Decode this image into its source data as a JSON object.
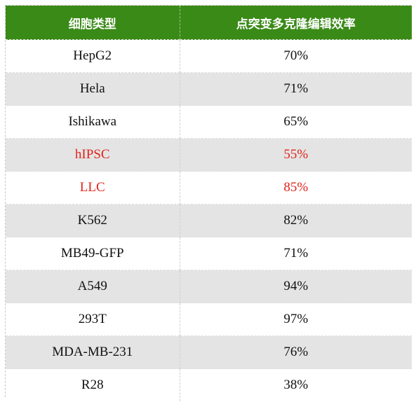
{
  "table": {
    "headers": [
      "细胞类型",
      "点突变多克隆编辑效率"
    ],
    "rows": [
      {
        "cell_type": "HepG2",
        "efficiency": "70%",
        "highlight": false
      },
      {
        "cell_type": "Hela",
        "efficiency": "71%",
        "highlight": false
      },
      {
        "cell_type": "Ishikawa",
        "efficiency": "65%",
        "highlight": false
      },
      {
        "cell_type": "hIPSC",
        "efficiency": "55%",
        "highlight": true
      },
      {
        "cell_type": "LLC",
        "efficiency": "85%",
        "highlight": true
      },
      {
        "cell_type": "K562",
        "efficiency": "82%",
        "highlight": false
      },
      {
        "cell_type": "MB49-GFP",
        "efficiency": "71%",
        "highlight": false
      },
      {
        "cell_type": "A549",
        "efficiency": "94%",
        "highlight": false
      },
      {
        "cell_type": "293T",
        "efficiency": "97%",
        "highlight": false
      },
      {
        "cell_type": "MDA-MB-231",
        "efficiency": "76%",
        "highlight": false
      },
      {
        "cell_type": "R28",
        "efficiency": "38%",
        "highlight": false
      }
    ]
  },
  "colors": {
    "header_bg": "#3a8a17",
    "header_text": "#ffffff",
    "stripe_bg": "#e4e4e4",
    "highlight_text": "#e2231a"
  }
}
